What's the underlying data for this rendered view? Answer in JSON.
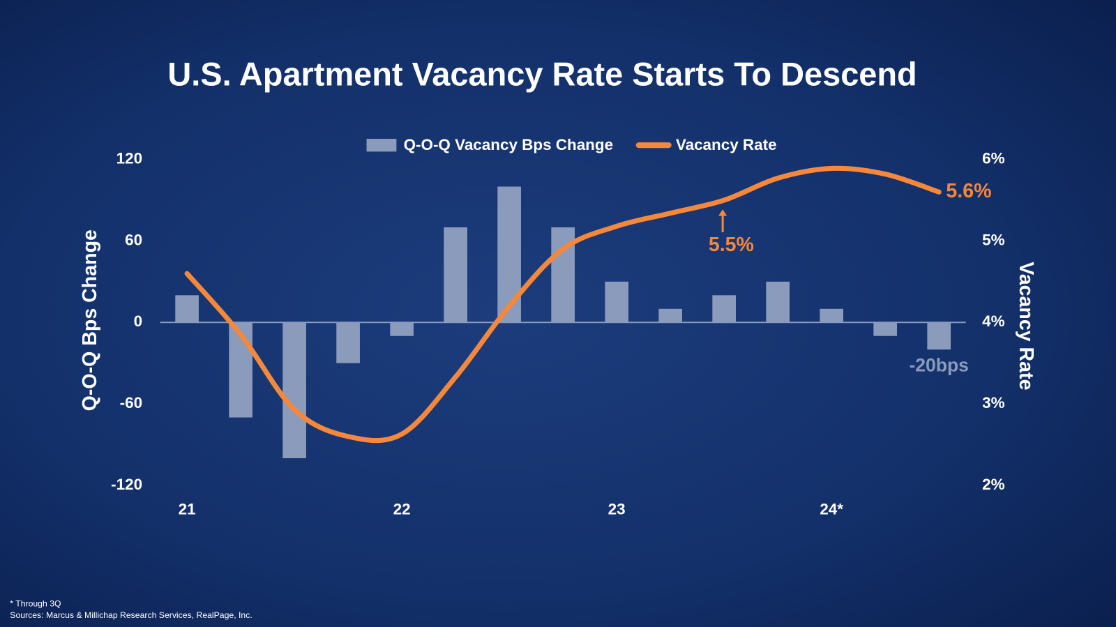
{
  "chart_data": {
    "type": "bar-line",
    "title": "U.S. Apartment Vacancy Rate Starts To Descend",
    "y_label": "Q-O-Q Bps Change",
    "y2_label": "Vacancy Rate",
    "footnote": "* Through 3Q",
    "source": "Sources: Marcus & Millichap Research Services, RealPage, Inc.",
    "categories": [
      "21",
      null,
      null,
      null,
      "22",
      null,
      null,
      null,
      "23",
      null,
      null,
      null,
      "24*",
      null,
      null
    ],
    "series": [
      {
        "name": "Q-O-Q Vacancy Bps Change",
        "type": "bar",
        "color": "#8a9bbb",
        "values": [
          20,
          -70,
          -100,
          -30,
          -10,
          70,
          100,
          70,
          30,
          10,
          20,
          30,
          10,
          -10,
          -20
        ],
        "value_labels": [
          null,
          null,
          null,
          null,
          null,
          null,
          null,
          null,
          null,
          null,
          null,
          null,
          null,
          null,
          "-20bps"
        ]
      },
      {
        "name": "Vacancy Rate",
        "type": "line",
        "axis": "y2",
        "color": "#f5883a",
        "values": [
          4.6,
          3.85,
          2.93,
          2.6,
          2.63,
          3.33,
          4.2,
          4.9,
          5.18,
          5.34,
          5.5,
          5.77,
          5.89,
          5.82,
          5.6
        ],
        "value_labels": [
          null,
          null,
          null,
          null,
          null,
          null,
          null,
          null,
          null,
          null,
          "5.5%",
          null,
          null,
          null,
          "5.6%"
        ]
      }
    ],
    "ylim": [
      -120,
      120
    ],
    "yticks": [
      -120,
      -60,
      0,
      60,
      120
    ],
    "y2lim": [
      2,
      6
    ],
    "y2ticks": [
      {
        "value": 2,
        "label": "2%"
      },
      {
        "value": 3,
        "label": "3%"
      },
      {
        "value": 4,
        "label": "4%"
      },
      {
        "value": 5,
        "label": "5%"
      },
      {
        "value": 6,
        "label": "6%"
      }
    ],
    "legend": "top"
  }
}
